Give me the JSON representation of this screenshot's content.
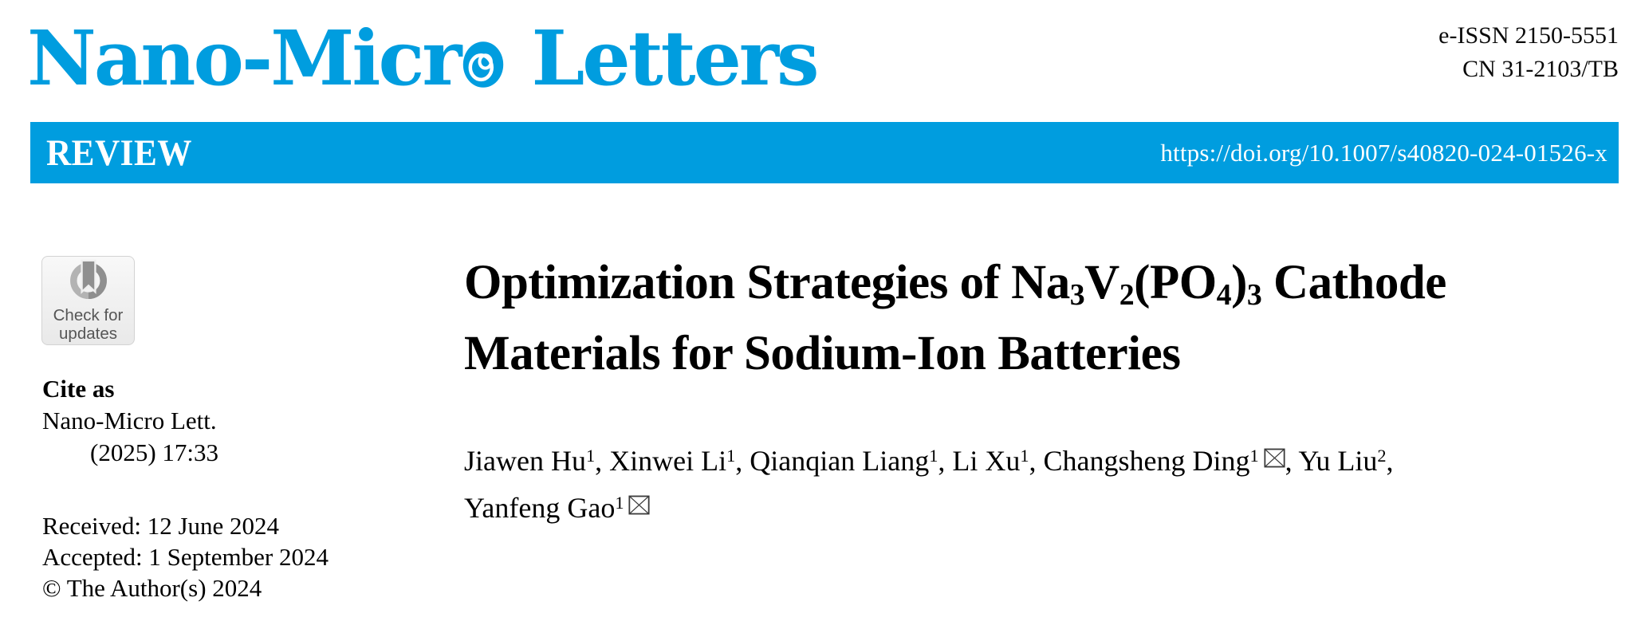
{
  "colors": {
    "brand_blue": "#009ddf",
    "badge_icon_gray": "#8f8f8f"
  },
  "journal": {
    "name_prefix": "Nano-Micr",
    "name_suffix": " Letters",
    "eissn": "e-ISSN 2150-5551",
    "cn_number": "CN 31-2103/TB"
  },
  "banner": {
    "article_type": "REVIEW",
    "doi": "https://doi.org/10.1007/s40820-024-01526-x"
  },
  "check_updates": {
    "line1": "Check for",
    "line2": "updates"
  },
  "citation": {
    "label": "Cite as",
    "journal_abbrev": "Nano-Micro Lett.",
    "volume_ref": "(2025) 17:33",
    "received": "Received: 12 June 2024",
    "accepted": "Accepted: 1 September 2024",
    "copyright": "© The Author(s) 2024"
  },
  "article": {
    "title_lines": [
      [
        {
          "t": "Optimization Strategies of Na"
        },
        {
          "s": "3"
        },
        {
          "t": "V"
        },
        {
          "s": "2"
        },
        {
          "t": "(PO"
        },
        {
          "s": "4"
        },
        {
          "t": ")"
        },
        {
          "s": "3"
        },
        {
          "t": " Cathode"
        }
      ],
      [
        {
          "t": "Materials for Sodium-Ion Batteries"
        }
      ]
    ],
    "author_lines": [
      [
        {
          "name": "Jiawen Hu",
          "aff": "1",
          "corresponding": false
        },
        {
          "name": "Xinwei Li",
          "aff": "1",
          "corresponding": false
        },
        {
          "name": "Qianqian Liang",
          "aff": "1",
          "corresponding": false
        },
        {
          "name": "Li Xu",
          "aff": "1",
          "corresponding": false
        },
        {
          "name": "Changsheng Ding",
          "aff": "1",
          "corresponding": true
        },
        {
          "name": "Yu Liu",
          "aff": "2",
          "corresponding": false
        }
      ],
      [
        {
          "name": "Yanfeng Gao",
          "aff": "1",
          "corresponding": true
        }
      ]
    ]
  }
}
